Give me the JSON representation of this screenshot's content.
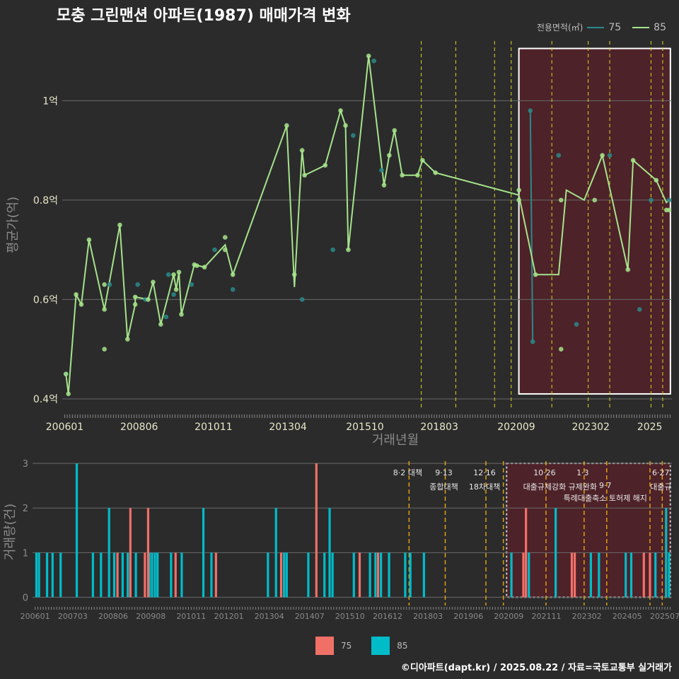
{
  "title": "모충 그린맨션 아파트(1987) 매매가격 변화",
  "footer": "©디아파트(dapt.kr) / 2025.08.22 / 자료=국토교통부 실거래가",
  "legend_top": {
    "title": "전용면적(㎡)",
    "items": [
      {
        "label": "75",
        "color": "#2a8a8a"
      },
      {
        "label": "85",
        "color": "#a6e38a"
      }
    ]
  },
  "legend_bottom": {
    "items": [
      {
        "label": "75",
        "color": "#f07068"
      },
      {
        "label": "85",
        "color": "#00bcc8"
      }
    ]
  },
  "chart_data": [
    {
      "type": "line",
      "title": "모충 그린맨션 아파트(1987) 매매가격 변화",
      "xlabel": "거래년월",
      "ylabel": "평균가(억)",
      "x_tick_labels": [
        "200601",
        "200806",
        "201011",
        "201304",
        "201510",
        "201803",
        "202009",
        "202302",
        "2025"
      ],
      "y_ticks": [
        0.4,
        0.6,
        0.8,
        1.0
      ],
      "y_tick_labels": [
        "0.4억",
        "0.6억",
        "0.8억",
        "1억"
      ],
      "ylim": [
        0.38,
        1.12
      ],
      "xlim": [
        2005.92,
        2025.72
      ],
      "grid": true,
      "legend": "top-right",
      "policy_lines": [
        2017.58,
        2018.7,
        2019.96,
        2020.5,
        2021.82,
        2023.0,
        2023.7,
        2025.04,
        2025.42
      ],
      "highlight_range": [
        2020.75,
        2025.67
      ],
      "series": [
        {
          "name": "75",
          "color": "#2a8a8a",
          "points": [
            [
              2006.04,
              0.45
            ],
            [
              2007.46,
              0.63
            ],
            [
              2008.37,
              0.63
            ],
            [
              2008.62,
              0.6
            ],
            [
              2009.29,
              0.565
            ],
            [
              2009.37,
              0.65
            ],
            [
              2009.54,
              0.61
            ],
            [
              2010.12,
              0.63
            ],
            [
              2010.87,
              0.7
            ],
            [
              2011.46,
              0.62
            ],
            [
              2013.71,
              0.6
            ],
            [
              2014.71,
              0.7
            ],
            [
              2015.37,
              0.93
            ],
            [
              2016.04,
              1.08
            ],
            [
              2016.29,
              0.86
            ],
            [
              2021.12,
              0.98
            ],
            [
              2021.2,
              0.515
            ],
            [
              2022.04,
              0.89
            ],
            [
              2022.62,
              0.55
            ],
            [
              2023.7,
              0.89
            ],
            [
              2025.04,
              0.8
            ],
            [
              2025.63,
              0.8
            ],
            [
              2024.67,
              0.58
            ]
          ],
          "line": [
            [
              2021.12,
              0.98
            ],
            [
              2021.2,
              0.515
            ]
          ]
        },
        {
          "name": "85",
          "color": "#a6e38a",
          "points": [
            [
              2006.04,
              0.45
            ],
            [
              2006.12,
              0.41
            ],
            [
              2006.37,
              0.61
            ],
            [
              2006.54,
              0.59
            ],
            [
              2006.79,
              0.72
            ],
            [
              2007.29,
              0.58
            ],
            [
              2007.29,
              0.5
            ],
            [
              2007.29,
              0.63
            ],
            [
              2007.79,
              0.75
            ],
            [
              2008.04,
              0.52
            ],
            [
              2008.29,
              0.59
            ],
            [
              2008.29,
              0.605
            ],
            [
              2008.71,
              0.6
            ],
            [
              2008.87,
              0.635
            ],
            [
              2009.12,
              0.55
            ],
            [
              2009.54,
              0.65
            ],
            [
              2009.62,
              0.62
            ],
            [
              2009.71,
              0.655
            ],
            [
              2009.79,
              0.57
            ],
            [
              2010.21,
              0.67
            ],
            [
              2010.29,
              0.668
            ],
            [
              2010.54,
              0.665
            ],
            [
              2011.21,
              0.7
            ],
            [
              2011.21,
              0.725
            ],
            [
              2011.46,
              0.65
            ],
            [
              2013.21,
              0.95
            ],
            [
              2013.46,
              0.65
            ],
            [
              2013.71,
              0.9
            ],
            [
              2013.79,
              0.85
            ],
            [
              2014.46,
              0.87
            ],
            [
              2014.96,
              0.98
            ],
            [
              2015.12,
              0.95
            ],
            [
              2015.21,
              0.7
            ],
            [
              2015.87,
              1.09
            ],
            [
              2016.37,
              0.83
            ],
            [
              2016.54,
              0.89
            ],
            [
              2016.71,
              0.94
            ],
            [
              2016.96,
              0.85
            ],
            [
              2017.46,
              0.85
            ],
            [
              2017.62,
              0.88
            ],
            [
              2018.04,
              0.855
            ],
            [
              2020.75,
              0.82
            ],
            [
              2020.75,
              0.8
            ],
            [
              2021.29,
              0.65
            ],
            [
              2022.12,
              0.8
            ],
            [
              2022.12,
              0.5
            ],
            [
              2023.21,
              0.8
            ],
            [
              2023.46,
              0.89
            ],
            [
              2024.29,
              0.66
            ],
            [
              2024.46,
              0.88
            ],
            [
              2025.21,
              0.84
            ],
            [
              2025.54,
              0.78
            ],
            [
              2025.63,
              0.78
            ]
          ],
          "line": [
            [
              2006.04,
              0.45
            ],
            [
              2006.12,
              0.41
            ],
            [
              2006.37,
              0.61
            ],
            [
              2006.54,
              0.59
            ],
            [
              2006.79,
              0.72
            ],
            [
              2007.29,
              0.58
            ],
            [
              2007.79,
              0.75
            ],
            [
              2008.04,
              0.52
            ],
            [
              2008.29,
              0.59
            ],
            [
              2008.29,
              0.605
            ],
            [
              2008.71,
              0.6
            ],
            [
              2008.87,
              0.635
            ],
            [
              2009.12,
              0.55
            ],
            [
              2009.54,
              0.65
            ],
            [
              2009.62,
              0.62
            ],
            [
              2009.71,
              0.655
            ],
            [
              2009.79,
              0.57
            ],
            [
              2010.21,
              0.67
            ],
            [
              2010.54,
              0.665
            ],
            [
              2011.21,
              0.71
            ],
            [
              2011.46,
              0.65
            ],
            [
              2013.21,
              0.95
            ],
            [
              2013.46,
              0.625
            ],
            [
              2013.71,
              0.9
            ],
            [
              2013.79,
              0.85
            ],
            [
              2014.46,
              0.87
            ],
            [
              2014.96,
              0.98
            ],
            [
              2015.12,
              0.95
            ],
            [
              2015.21,
              0.7
            ],
            [
              2015.87,
              1.09
            ],
            [
              2016.37,
              0.83
            ],
            [
              2016.54,
              0.89
            ],
            [
              2016.71,
              0.94
            ],
            [
              2016.96,
              0.85
            ],
            [
              2017.46,
              0.85
            ],
            [
              2017.62,
              0.88
            ],
            [
              2018.04,
              0.855
            ],
            [
              2020.75,
              0.81
            ],
            [
              2021.29,
              0.65
            ],
            [
              2022.04,
              0.65
            ],
            [
              2022.29,
              0.82
            ],
            [
              2022.87,
              0.8
            ],
            [
              2023.46,
              0.89
            ],
            [
              2024.29,
              0.66
            ],
            [
              2024.46,
              0.88
            ],
            [
              2025.21,
              0.84
            ],
            [
              2025.54,
              0.795
            ],
            [
              2025.63,
              0.8
            ]
          ]
        }
      ]
    },
    {
      "type": "bar",
      "xlabel": "",
      "ylabel": "거래량(건)",
      "y_ticks": [
        0,
        1,
        2,
        3
      ],
      "ylim": [
        -0.12,
        3.05
      ],
      "xlim": [
        2005.92,
        2025.72
      ],
      "x_tick_labels": [
        "200601",
        "200703",
        "200806",
        "200908",
        "201011",
        "201201",
        "201304",
        "201407",
        "201510",
        "201612",
        "201803",
        "201906",
        "202009",
        "202111",
        "202302",
        "202405",
        "202507"
      ],
      "highlight_range": [
        2020.6,
        2025.67
      ],
      "policy_lines": [
        2017.58,
        2018.7,
        2019.96,
        2020.5,
        2021.82,
        2023.0,
        2023.7,
        2025.04,
        2025.42
      ],
      "annotations": [
        {
          "x": 2017.58,
          "line1": "8·2 대책",
          "line2": ""
        },
        {
          "x": 2018.7,
          "line1": "9·13",
          "line2": "종합대책"
        },
        {
          "x": 2019.96,
          "line1": "12·16",
          "line2": "18차대책"
        },
        {
          "x": 2021.82,
          "line1": "10·26",
          "line2": "대출규제강화"
        },
        {
          "x": 2023.0,
          "line1": "1·3",
          "line2": "규제완화"
        },
        {
          "x": 2023.7,
          "line1": "",
          "line2": "9·7"
        },
        {
          "x": 2023.7,
          "line1": "",
          "line2": "특례대출축소 토허제 해지"
        },
        {
          "x": 2025.42,
          "line1": "6·27",
          "line2": "대출규"
        }
      ],
      "series": [
        {
          "name": "85",
          "color": "#00bcc8",
          "bars": [
            [
              2006.04,
              1
            ],
            [
              2006.12,
              1
            ],
            [
              2006.37,
              1
            ],
            [
              2006.54,
              1
            ],
            [
              2006.79,
              1
            ],
            [
              2007.29,
              3
            ],
            [
              2007.79,
              1
            ],
            [
              2008.04,
              1
            ],
            [
              2008.29,
              2
            ],
            [
              2008.45,
              1
            ],
            [
              2008.71,
              1
            ],
            [
              2008.87,
              1
            ],
            [
              2009.12,
              1
            ],
            [
              2009.54,
              1
            ],
            [
              2009.62,
              1
            ],
            [
              2009.71,
              1
            ],
            [
              2009.79,
              1
            ],
            [
              2010.21,
              1
            ],
            [
              2010.54,
              1
            ],
            [
              2011.21,
              2
            ],
            [
              2011.46,
              1
            ],
            [
              2013.21,
              1
            ],
            [
              2013.46,
              2
            ],
            [
              2013.71,
              1
            ],
            [
              2013.79,
              1
            ],
            [
              2014.46,
              1
            ],
            [
              2014.96,
              1
            ],
            [
              2015.12,
              2
            ],
            [
              2015.21,
              1
            ],
            [
              2015.87,
              1
            ],
            [
              2016.37,
              1
            ],
            [
              2016.54,
              1
            ],
            [
              2016.71,
              1
            ],
            [
              2016.96,
              1
            ],
            [
              2017.46,
              1
            ],
            [
              2017.62,
              1
            ],
            [
              2018.04,
              1
            ],
            [
              2020.75,
              1
            ],
            [
              2021.29,
              1
            ],
            [
              2022.12,
              2
            ],
            [
              2023.21,
              1
            ],
            [
              2023.46,
              1
            ],
            [
              2024.29,
              1
            ],
            [
              2024.46,
              1
            ],
            [
              2025.21,
              1
            ],
            [
              2025.54,
              2
            ],
            [
              2025.63,
              1
            ]
          ]
        },
        {
          "name": "75",
          "color": "#f07068",
          "bars": [
            [
              2008.55,
              1
            ],
            [
              2008.95,
              2
            ],
            [
              2009.4,
              1
            ],
            [
              2009.5,
              2
            ],
            [
              2010.35,
              1
            ],
            [
              2011.6,
              1
            ],
            [
              2013.62,
              1
            ],
            [
              2014.71,
              3
            ],
            [
              2016.05,
              1
            ],
            [
              2016.62,
              1
            ],
            [
              2021.12,
              1
            ],
            [
              2021.2,
              2
            ],
            [
              2022.62,
              1
            ],
            [
              2022.71,
              1
            ],
            [
              2025.04,
              1
            ],
            [
              2024.85,
              1
            ]
          ]
        }
      ]
    }
  ]
}
